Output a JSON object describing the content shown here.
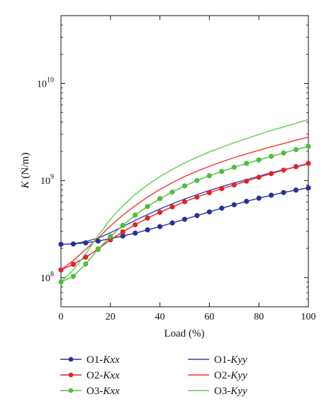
{
  "chart_data": {
    "type": "line",
    "xlabel": "Load (%)",
    "ylabel": "K (N/m)",
    "ylabel_parts": {
      "symbol": "K",
      "unit": " (N/m)"
    },
    "xlim": [
      0,
      100
    ],
    "ylim": [
      50000000,
      50000000000
    ],
    "yscale": "log",
    "xticks": [
      "0",
      "20",
      "40",
      "60",
      "80",
      "100"
    ],
    "yticks": [
      {
        "value": 100000000,
        "base": "10",
        "exp": "8"
      },
      {
        "value": 1000000000,
        "base": "10",
        "exp": "9"
      },
      {
        "value": 10000000000,
        "base": "10",
        "exp": "10"
      }
    ],
    "grid": false,
    "legend_position": "bottom",
    "series": [
      {
        "name": "O1-Kxx",
        "name_prefix": "O1-",
        "name_italic": "Kxx",
        "color": "#2b2f9a",
        "marker": "circle",
        "x": [
          0,
          5,
          10,
          15,
          20,
          25,
          30,
          35,
          40,
          45,
          50,
          55,
          60,
          65,
          70,
          75,
          80,
          85,
          90,
          95,
          100
        ],
        "y": [
          220000000,
          222000000,
          228000000,
          238000000,
          252000000,
          268000000,
          287000000,
          310000000,
          335000000,
          365000000,
          398000000,
          435000000,
          475000000,
          518000000,
          563000000,
          610000000,
          658000000,
          705000000,
          752000000,
          797000000,
          840000000
        ]
      },
      {
        "name": "O1-Kyy",
        "name_prefix": "O1-",
        "name_italic": "Kyy",
        "color": "#3b3fae",
        "marker": "none",
        "x": [
          0,
          5,
          10,
          15,
          20,
          25,
          30,
          35,
          40,
          45,
          50,
          55,
          60,
          65,
          70,
          75,
          80,
          85,
          90,
          95,
          100
        ],
        "y": [
          220000000,
          223000000,
          235000000,
          255000000,
          290000000,
          335000000,
          388000000,
          445000000,
          510000000,
          575000000,
          645000000,
          715000000,
          790000000,
          865000000,
          945000000,
          1020000000,
          1110000000,
          1200000000,
          1290000000,
          1380000000,
          1480000000
        ]
      },
      {
        "name": "O2-Kxx",
        "name_prefix": "O2-",
        "name_italic": "Kxx",
        "color": "#e02424",
        "marker": "circle",
        "x": [
          0,
          5,
          10,
          15,
          20,
          25,
          30,
          35,
          40,
          45,
          50,
          55,
          60,
          65,
          70,
          75,
          80,
          85,
          90,
          95,
          100
        ],
        "y": [
          120000000,
          137000000,
          162000000,
          197000000,
          245000000,
          295000000,
          350000000,
          410000000,
          470000000,
          535000000,
          605000000,
          675000000,
          750000000,
          825000000,
          900000000,
          985000000,
          1080000000,
          1180000000,
          1280000000,
          1390000000,
          1500000000
        ]
      },
      {
        "name": "O2-Kyy",
        "name_prefix": "O2-",
        "name_italic": "Kyy",
        "color": "#e83a3a",
        "marker": "none",
        "x": [
          0,
          5,
          10,
          15,
          20,
          25,
          30,
          35,
          40,
          45,
          50,
          55,
          60,
          65,
          70,
          75,
          80,
          85,
          90,
          95,
          100
        ],
        "y": [
          120000000,
          150000000,
          195000000,
          255000000,
          340000000,
          440000000,
          550000000,
          675000000,
          810000000,
          950000000,
          1100000000,
          1250000000,
          1400000000,
          1560000000,
          1720000000,
          1880000000,
          2050000000,
          2220000000,
          2400000000,
          2600000000,
          2800000000
        ]
      },
      {
        "name": "O3-Kxx",
        "name_prefix": "O3-",
        "name_italic": "Kxx",
        "color": "#4bbf3c",
        "marker": "circle",
        "x": [
          0,
          5,
          10,
          15,
          20,
          25,
          30,
          35,
          40,
          45,
          50,
          55,
          60,
          65,
          70,
          75,
          80,
          85,
          90,
          95,
          100
        ],
        "y": [
          90000000,
          103000000,
          138000000,
          195000000,
          265000000,
          345000000,
          440000000,
          540000000,
          650000000,
          760000000,
          880000000,
          1000000000,
          1120000000,
          1240000000,
          1370000000,
          1500000000,
          1630000000,
          1770000000,
          1920000000,
          2080000000,
          2250000000
        ]
      },
      {
        "name": "O3-Kyy",
        "name_prefix": "O3-",
        "name_italic": "Kyy",
        "color": "#5cd14a",
        "marker": "none",
        "x": [
          0,
          5,
          10,
          15,
          20,
          25,
          30,
          35,
          40,
          45,
          50,
          55,
          60,
          65,
          70,
          75,
          80,
          85,
          90,
          95,
          100
        ],
        "y": [
          90000000,
          120000000,
          175000000,
          270000000,
          400000000,
          550000000,
          720000000,
          900000000,
          1100000000,
          1300000000,
          1520000000,
          1740000000,
          1970000000,
          2200000000,
          2450000000,
          2700000000,
          2980000000,
          3270000000,
          3570000000,
          3900000000,
          4250000000
        ]
      }
    ]
  }
}
